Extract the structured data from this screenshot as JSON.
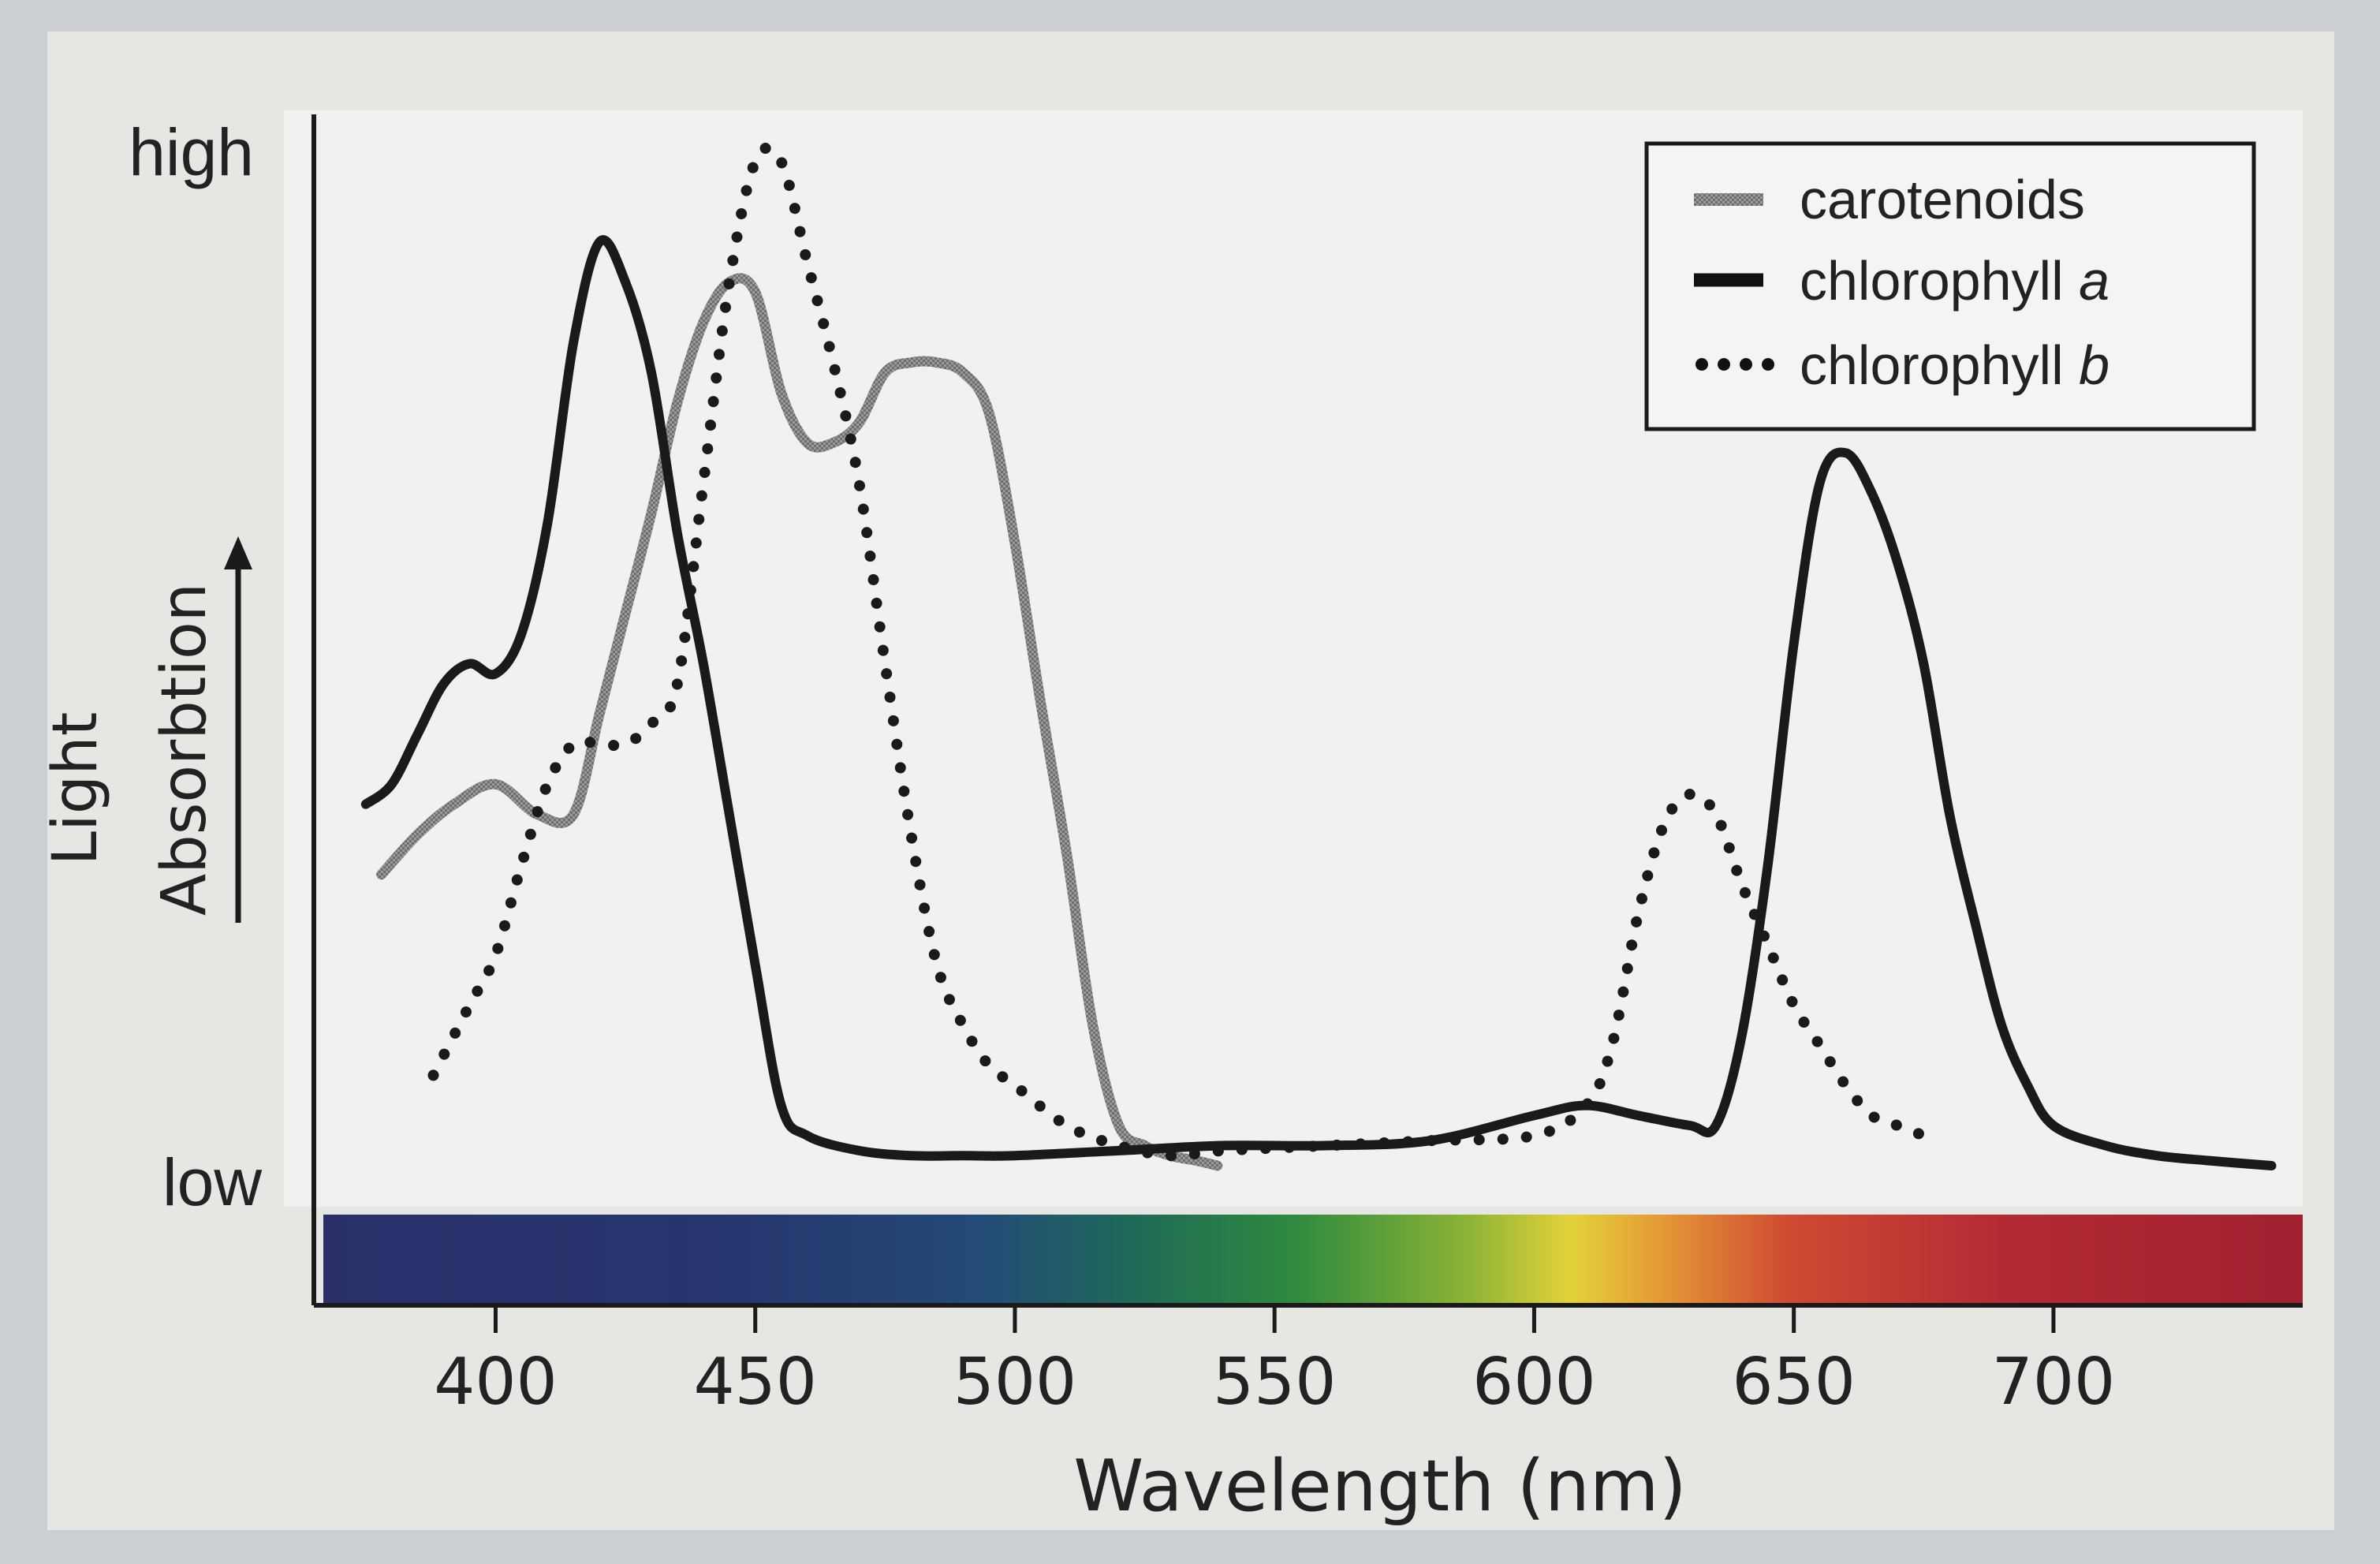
{
  "chart_data": {
    "type": "line",
    "title": "",
    "xlabel": "Wavelength (nm)",
    "ylabel_line1": "Light",
    "ylabel_line2": "Absorbtion",
    "y_high_label": "high",
    "y_low_label": "low",
    "xlim": [
      365,
      748
    ],
    "ylim": [
      0,
      100
    ],
    "xticks": [
      400,
      450,
      500,
      550,
      600,
      650,
      700
    ],
    "xtick_labels": [
      "400",
      "450",
      "500",
      "550",
      "600",
      "650",
      "700"
    ],
    "grid": false,
    "legend_position": "top-right",
    "spectrum_bar": true,
    "series": [
      {
        "name": "carotenoids",
        "style": "gray",
        "color": "#8a8a8a",
        "x": [
          378,
          385,
          392,
          400,
          408,
          415,
          420,
          425,
          430,
          435,
          440,
          445,
          450,
          455,
          460,
          465,
          470,
          475,
          480,
          485,
          490,
          495,
          500,
          505,
          510,
          515,
          520,
          525,
          530,
          535,
          539
        ],
        "y": [
          29,
          33,
          36,
          38,
          35,
          35,
          45,
          55,
          65,
          76,
          84,
          88,
          87,
          77,
          72,
          72,
          74,
          79,
          80,
          80,
          79,
          75,
          62,
          46,
          31,
          14,
          4,
          2,
          1,
          0.5,
          0
        ]
      },
      {
        "name": "chlorophyll a",
        "style": "solid",
        "color": "#1a1a1a",
        "x": [
          375,
          380,
          385,
          390,
          395,
          400,
          405,
          410,
          415,
          420,
          425,
          430,
          435,
          440,
          445,
          450,
          455,
          460,
          470,
          480,
          490,
          500,
          520,
          540,
          560,
          580,
          600,
          610,
          620,
          630,
          635,
          640,
          645,
          650,
          655,
          660,
          665,
          670,
          675,
          680,
          685,
          690,
          695,
          700,
          710,
          720,
          730,
          742
        ],
        "y": [
          36,
          38,
          43,
          48,
          50,
          49,
          53,
          64,
          82,
          92,
          88,
          79,
          63,
          50,
          35,
          20,
          6,
          3,
          1.5,
          1,
          1,
          1,
          1.5,
          2,
          2,
          2.5,
          5,
          6,
          5,
          4,
          4,
          13,
          30,
          52,
          68,
          71,
          67,
          60,
          50,
          35,
          24,
          14,
          8,
          4,
          2,
          1,
          0.5,
          0
        ]
      },
      {
        "name": "chlorophyll b",
        "style": "dotted",
        "color": "#1a1a1a",
        "x": [
          388,
          395,
          400,
          405,
          410,
          415,
          420,
          425,
          430,
          435,
          440,
          445,
          450,
          455,
          460,
          465,
          470,
          475,
          480,
          485,
          490,
          495,
          500,
          510,
          520,
          530,
          540,
          560,
          580,
          600,
          610,
          615,
          620,
          625,
          630,
          635,
          640,
          645,
          650,
          655,
          660,
          665,
          670,
          675
        ],
        "y": [
          9,
          16,
          21,
          30,
          38,
          42,
          42,
          42,
          44,
          48,
          68,
          88,
          100,
          100,
          90,
          80,
          68,
          50,
          33,
          20,
          14,
          10,
          8,
          4,
          2,
          1,
          1.5,
          2,
          2.5,
          3,
          6,
          12,
          25,
          34,
          37,
          35,
          28,
          22,
          16,
          12,
          8,
          5,
          4,
          3
        ]
      }
    ],
    "legend": [
      {
        "label": "carotenoids",
        "style": "gray"
      },
      {
        "label": "chlorophyll",
        "italic_suffix": "a",
        "style": "solid"
      },
      {
        "label": "chlorophyll",
        "italic_suffix": "b",
        "style": "dotted"
      }
    ]
  }
}
